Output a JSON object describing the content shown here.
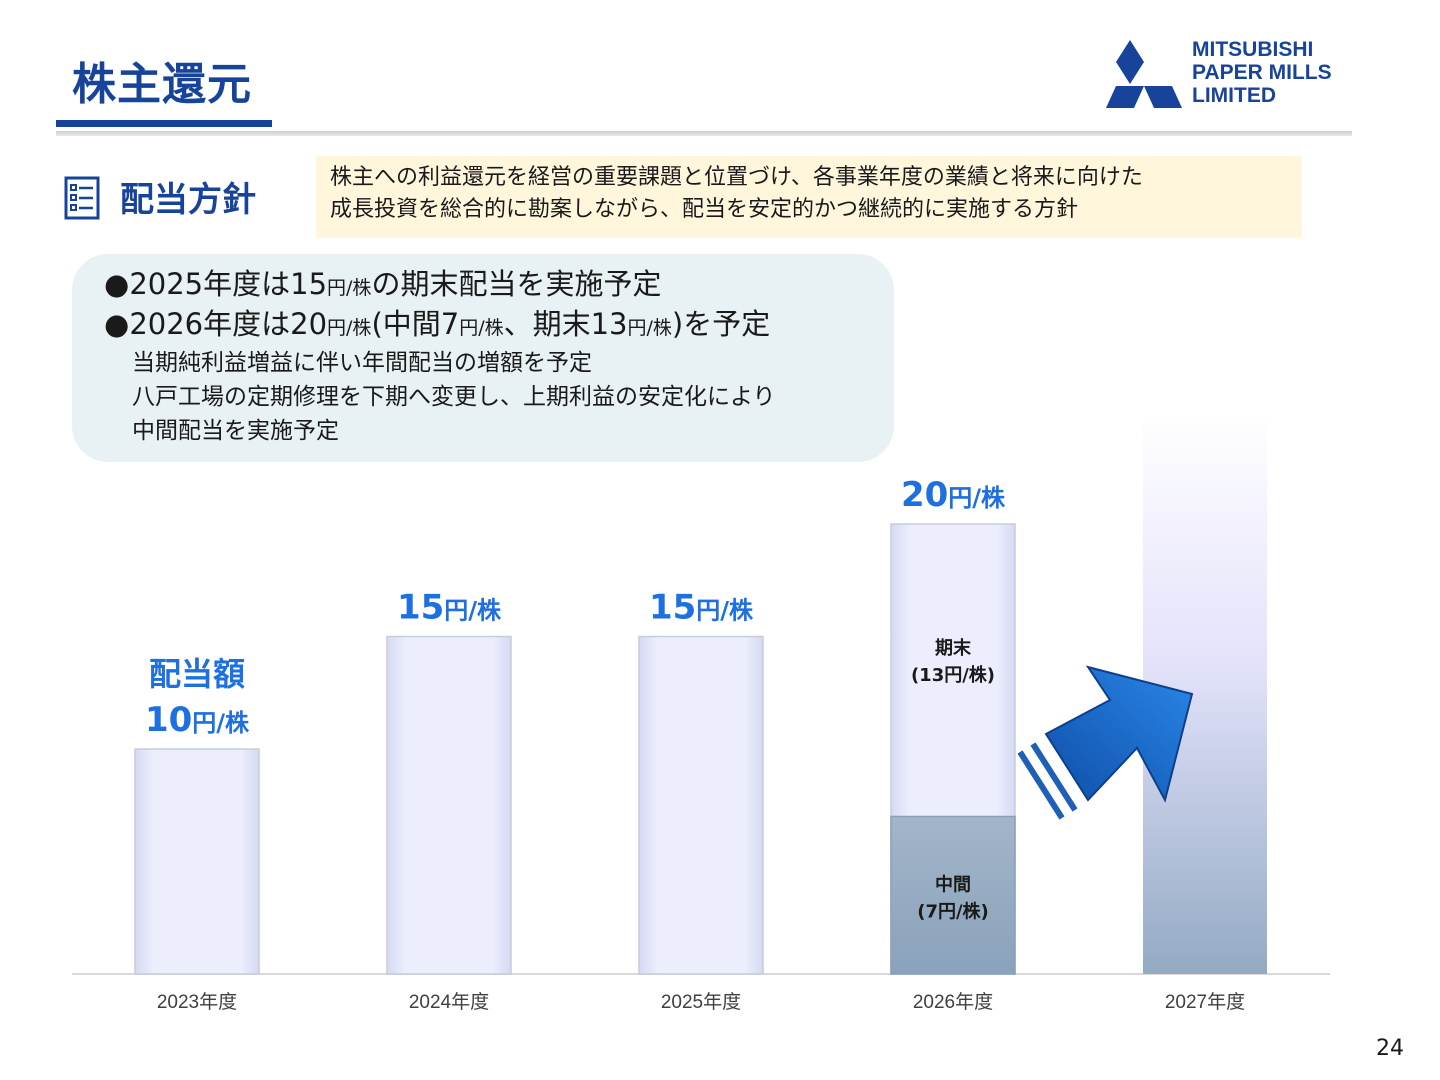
{
  "header": {
    "title": "株主還元",
    "logo": {
      "line1": "MITSUBISHI",
      "line2": "PAPER MILLS",
      "line3": "LIMITED"
    }
  },
  "policy": {
    "heading": "配当方針",
    "text_line1": "株主への利益還元を経営の重要課題と位置づけ、各事業年度の業績と将来に向けた",
    "text_line2": "成長投資を総合的に勘案しながら、配当を安定的かつ継続的に実施する方針"
  },
  "notes": {
    "bullet1": {
      "mark": "●",
      "pre": "2025年度は15",
      "unit": "円/株",
      "post": "の期末配当を実施予定"
    },
    "bullet2": {
      "mark": "●",
      "pre": "2026年度は20",
      "unit1": "円/株",
      "mid1": "(中間7",
      "unit2": "円/株",
      "mid2": "、期末13",
      "unit3": "円/株",
      "post": ")を予定"
    },
    "sub1": "当期純利益増益に伴い年間配当の増額を予定",
    "sub2": "八戸工場の定期修理を下期へ変更し、上期利益の安定化により",
    "sub3": "中間配当を実施予定"
  },
  "chart_data": {
    "type": "bar",
    "categories": [
      "2023年度",
      "2024年度",
      "2025年度",
      "2026年度",
      "2027年度"
    ],
    "values": [
      10,
      15,
      15,
      20,
      null
    ],
    "unit": "円/株",
    "series": [
      {
        "name": "中間",
        "values": [
          null,
          null,
          null,
          7,
          null
        ]
      },
      {
        "name": "期末",
        "values": [
          null,
          null,
          null,
          13,
          null
        ]
      }
    ],
    "segment_labels": {
      "interim": "中間",
      "interim_value": "(7円/株)",
      "yearend": "期末",
      "yearend_value": "(13円/株)"
    },
    "value_labels": [
      "10",
      "15",
      "15",
      "20",
      ""
    ],
    "first_label_prefix": "配当額",
    "ylim": [
      0,
      25
    ],
    "note_2027": "2027年度 bar shown as a gradient placeholder (value not stated)",
    "colors": {
      "bar": "#e8ebfc",
      "interim": "#8ea6bf",
      "label": "#1e6fe0",
      "arrow": "#1565c0"
    }
  },
  "footer": {
    "page_number": "24"
  }
}
